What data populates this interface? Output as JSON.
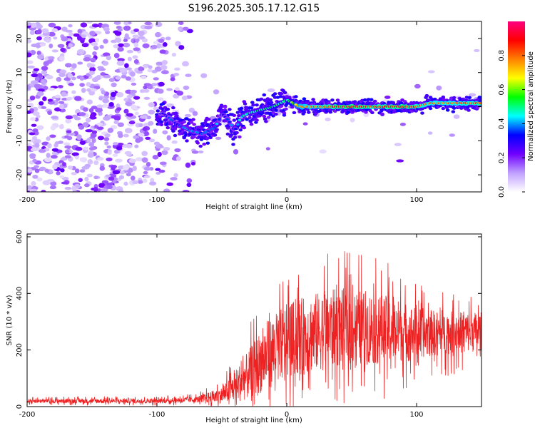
{
  "title": "S196.2025.305.17.12.G15",
  "chart_data": [
    {
      "type": "heatmap",
      "name": "spectrogram",
      "xlabel": "Height of straight line (km)",
      "ylabel": "Frequency (Hz)",
      "xlim": [
        -200,
        150
      ],
      "ylim": [
        -25,
        25
      ],
      "xticks": [
        -200,
        -100,
        0,
        100
      ],
      "yticks": [
        -20,
        -10,
        0,
        10,
        20
      ],
      "colorbar": {
        "label": "Normalized spectral amplitude",
        "range": [
          0.0,
          1.0
        ],
        "ticks": [
          0.0,
          0.2,
          0.4,
          0.6,
          0.8
        ],
        "colors": [
          "#ffffff",
          "#c0a0ff",
          "#7000ff",
          "#0000ff",
          "#00ffff",
          "#00ff00",
          "#ffff00",
          "#ff8000",
          "#ff0000",
          "#ff0080"
        ]
      },
      "ridge": {
        "x": [
          -95,
          -85,
          -75,
          -65,
          -55,
          -50,
          -45,
          -40,
          -35,
          -30,
          -20,
          -10,
          -5,
          0,
          10,
          30,
          50,
          70,
          90,
          100,
          110,
          130,
          150
        ],
        "y": [
          -2,
          -5,
          -7,
          -8,
          -6,
          -2,
          -4,
          -7,
          -3,
          -2,
          -1,
          0,
          1,
          2,
          0,
          0,
          0,
          0,
          0,
          0,
          1,
          1,
          1
        ],
        "amplitude": [
          0.3,
          0.35,
          0.4,
          0.35,
          0.4,
          0.3,
          0.35,
          0.35,
          0.45,
          0.45,
          0.5,
          0.55,
          0.5,
          0.5,
          0.75,
          0.85,
          0.9,
          0.85,
          0.9,
          0.85,
          0.8,
          0.8,
          0.85
        ]
      }
    },
    {
      "type": "line",
      "name": "snr",
      "xlabel": "Height of straight line (km)",
      "ylabel": "SNR (10 * v/v)",
      "xlim": [
        -200,
        150
      ],
      "ylim": [
        0,
        610
      ],
      "xticks": [
        -200,
        -100,
        0,
        100
      ],
      "yticks": [
        0,
        200,
        400,
        600
      ],
      "color": "#ee2222",
      "envelope": {
        "x": [
          -200,
          -150,
          -100,
          -70,
          -50,
          -40,
          -30,
          -20,
          -10,
          0,
          20,
          40,
          60,
          80,
          100,
          120,
          150
        ],
        "baseline": [
          20,
          20,
          20,
          25,
          40,
          70,
          110,
          160,
          200,
          230,
          260,
          280,
          280,
          270,
          260,
          260,
          265
        ],
        "spread": [
          10,
          12,
          12,
          15,
          40,
          80,
          120,
          160,
          180,
          190,
          200,
          200,
          190,
          170,
          130,
          110,
          100
        ]
      }
    }
  ]
}
